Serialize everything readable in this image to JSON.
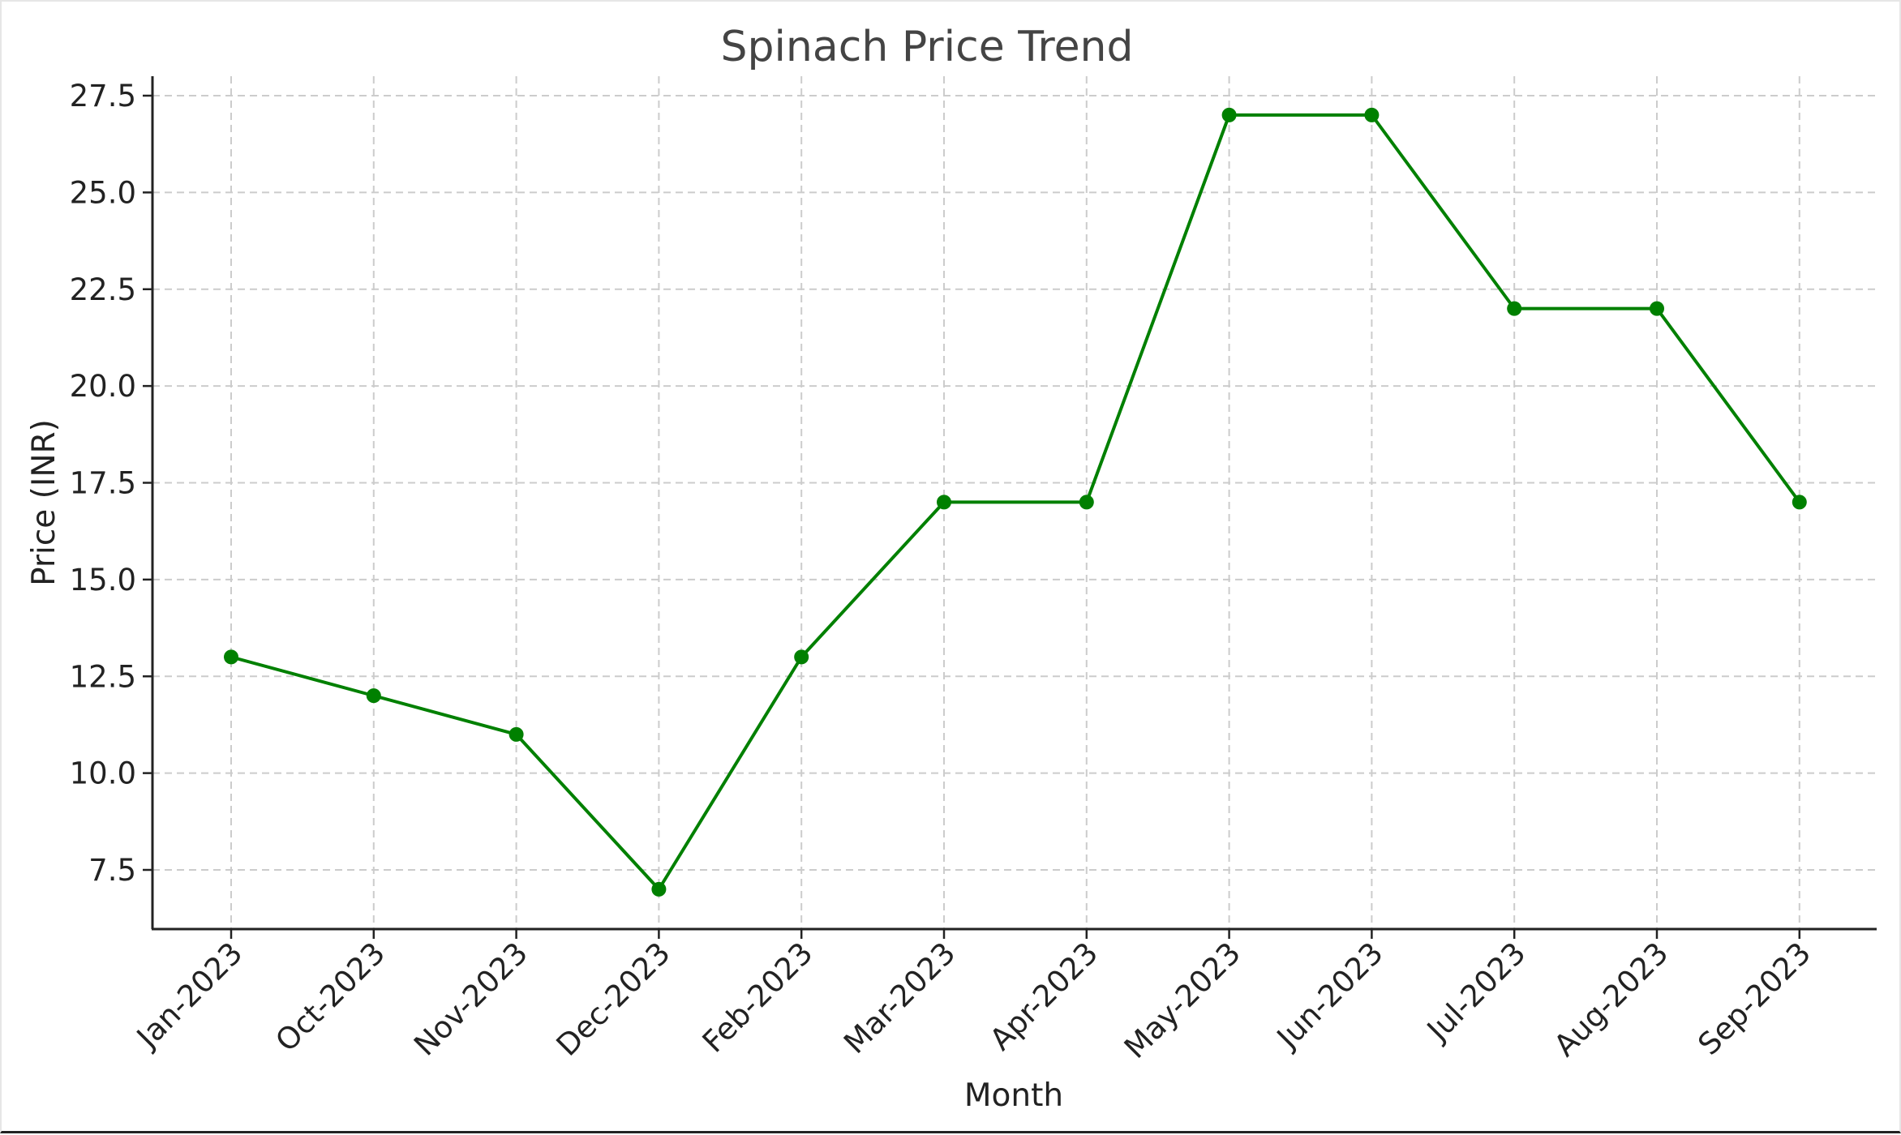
{
  "chart_data": {
    "type": "line",
    "title": "Spinach Price Trend",
    "xlabel": "Month",
    "ylabel": "Price (INR)",
    "categories": [
      "Jan-2023",
      "Oct-2023",
      "Nov-2023",
      "Dec-2023",
      "Feb-2023",
      "Mar-2023",
      "Apr-2023",
      "May-2023",
      "Jun-2023",
      "Jul-2023",
      "Aug-2023",
      "Sep-2023"
    ],
    "series": [
      {
        "values": [
          13,
          12,
          11,
          7,
          13,
          17,
          17,
          27,
          27,
          22,
          22,
          17
        ],
        "color": "#008000",
        "marker": "circle"
      }
    ],
    "yticks": [
      "7.5",
      "10.0",
      "12.5",
      "15.0",
      "17.5",
      "20.0",
      "22.5",
      "25.0",
      "27.5"
    ],
    "ylim": [
      6.0,
      28.5
    ],
    "grid": true,
    "grid_style": "dashed",
    "legend": false
  }
}
